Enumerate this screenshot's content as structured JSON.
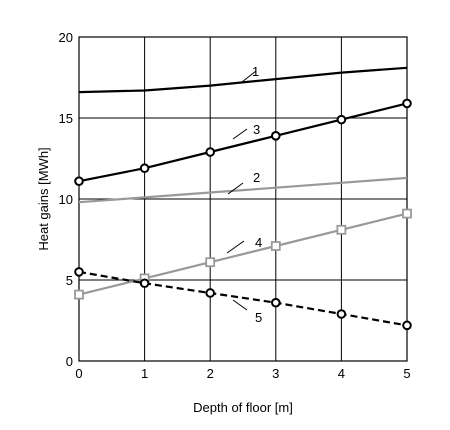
{
  "chart_data": {
    "type": "line",
    "xlabel": "Depth of floor [m]",
    "ylabel": "Heat gains [MWh]",
    "xlim": [
      0,
      5
    ],
    "ylim": [
      0,
      20
    ],
    "x_ticks": [
      "0",
      "1",
      "2",
      "3",
      "4",
      "5"
    ],
    "y_ticks": [
      "0",
      "5",
      "10",
      "15",
      "20"
    ],
    "grid": true,
    "legend": "none",
    "x": [
      0,
      1,
      2,
      3,
      4,
      5
    ],
    "series": [
      {
        "name": "1",
        "values": [
          16.6,
          16.7,
          17.0,
          17.4,
          17.8,
          18.1
        ],
        "color": "#000000",
        "style": "solid",
        "marker": "none"
      },
      {
        "name": "3",
        "values": [
          11.1,
          11.9,
          12.9,
          13.9,
          14.9,
          15.9
        ],
        "color": "#000000",
        "style": "solid",
        "marker": "circle"
      },
      {
        "name": "2",
        "values": [
          9.8,
          10.1,
          10.4,
          10.7,
          11.0,
          11.3
        ],
        "color": "#999999",
        "style": "solid",
        "marker": "none"
      },
      {
        "name": "4",
        "values": [
          4.1,
          5.1,
          6.1,
          7.1,
          8.1,
          9.1
        ],
        "color": "#999999",
        "style": "solid",
        "marker": "square"
      },
      {
        "name": "5",
        "values": [
          5.5,
          4.8,
          4.2,
          3.6,
          2.9,
          2.2
        ],
        "color": "#000000",
        "style": "dashed",
        "marker": "circle"
      }
    ]
  }
}
